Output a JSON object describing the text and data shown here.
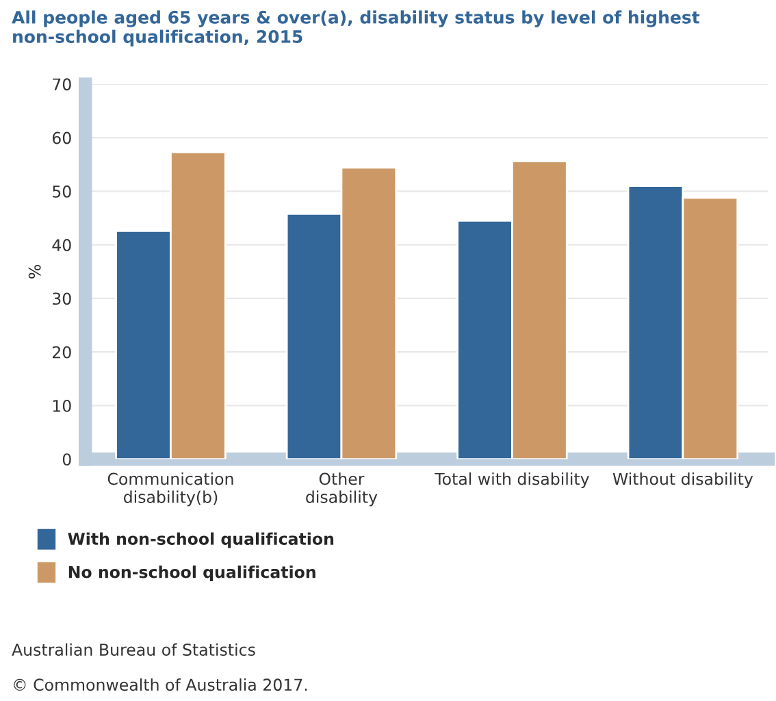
{
  "chart_data": {
    "type": "bar",
    "title": "All people aged 65 years & over(a), disability status by level of highest non-school qualification, 2015",
    "ylabel": "%",
    "categories": [
      "Communication\ndisability(b)",
      "Other\ndisability",
      "Total with disability",
      "Without disability"
    ],
    "series": [
      {
        "name": "With non-school qualification",
        "color": "#336699",
        "values": [
          42.6,
          45.8,
          44.5,
          51.0
        ]
      },
      {
        "name": "No non-school qualification",
        "color": "#cc9966",
        "values": [
          57.3,
          54.4,
          55.6,
          48.8
        ]
      }
    ],
    "ylim": [
      0,
      70
    ],
    "yticks": [
      0,
      10,
      20,
      30,
      40,
      50,
      60,
      70
    ],
    "grid": "y",
    "legend": "bottom left",
    "annotations": [
      "Australian Bureau of Statistics",
      "© Commonwealth of Australia 2017."
    ]
  }
}
